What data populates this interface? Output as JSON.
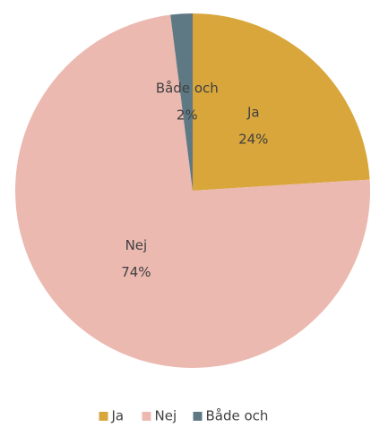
{
  "chart_data": {
    "type": "pie",
    "categories": [
      "Ja",
      "Nej",
      "Både och"
    ],
    "values": [
      24,
      74,
      2
    ],
    "value_labels": [
      "24%",
      "74%",
      "2%"
    ],
    "colors": [
      "#d9a63c",
      "#ebb9b0",
      "#5e7884"
    ],
    "legend": "bottom"
  }
}
